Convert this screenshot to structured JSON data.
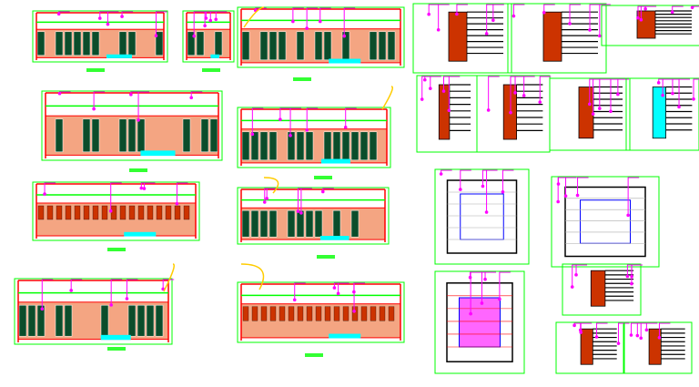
{
  "background": "#ffffff",
  "palette": {
    "outline": "#ff0000",
    "dimension": "#00ff00",
    "leader": "#ff00ff",
    "fill_wood": "#f4a582",
    "fill_panel": "#0b4d2b",
    "fill_glass": "#00ffff",
    "fill_brick": "#cc3300",
    "hatch": "#aaaaaa",
    "text": "#000000",
    "accent_yellow": "#ffcc00",
    "accent_blue": "#0000ff",
    "title_bar": "#33ff33"
  },
  "drawings": [
    {
      "kind": "elevation"
    },
    {
      "kind": "elevation-small"
    },
    {
      "kind": "elevation"
    },
    {
      "kind": "detail"
    },
    {
      "kind": "detail"
    },
    {
      "kind": "detail-beam"
    },
    {
      "kind": "elevation"
    },
    {
      "kind": "elevation"
    },
    {
      "kind": "detail"
    },
    {
      "kind": "detail"
    },
    {
      "kind": "detail"
    },
    {
      "kind": "detail-glass"
    },
    {
      "kind": "elevation-brick"
    },
    {
      "kind": "elevation"
    },
    {
      "kind": "plan"
    },
    {
      "kind": "plan"
    },
    {
      "kind": "elevation"
    },
    {
      "kind": "elevation-brick"
    },
    {
      "kind": "plan-grid"
    },
    {
      "kind": "detail"
    },
    {
      "kind": "detail"
    },
    {
      "kind": "detail"
    }
  ]
}
